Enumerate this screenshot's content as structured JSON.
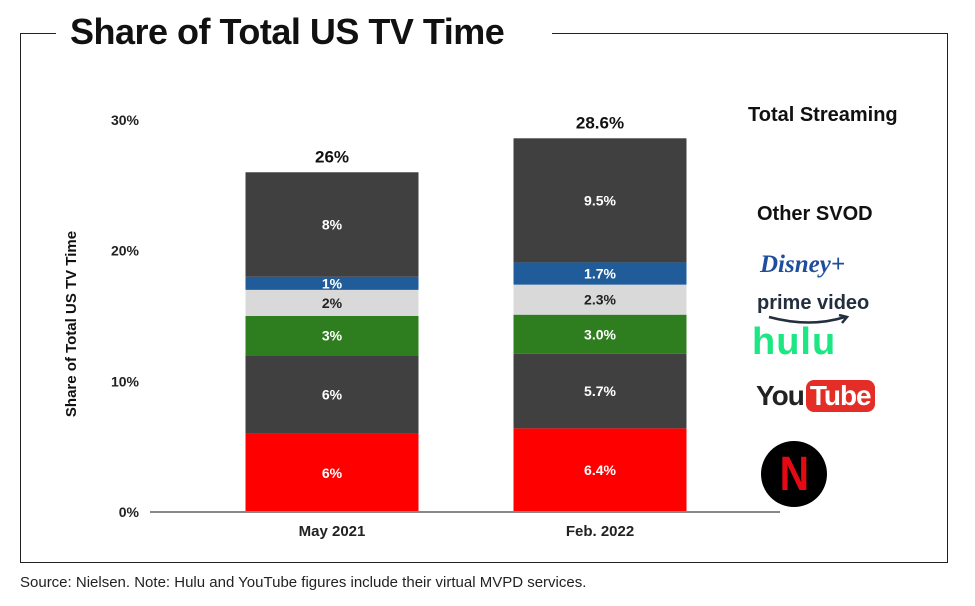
{
  "title": "Share of Total US TV Time",
  "source": "Source: Nielsen. Note: Hulu and YouTube figures include their virtual MVPD services.",
  "legend": {
    "total_streaming": "Total Streaming",
    "other_svod": "Other SVOD",
    "disney_logo": "Disney+",
    "prime_logo": "prime video",
    "hulu_logo": "hulu",
    "youtube_logo_you": "You",
    "youtube_logo_tube": "Tube",
    "netflix_logo": "N"
  },
  "colors": {
    "netflix": "#ff0000",
    "youtube": "#404040",
    "hulu": "#2e7d1e",
    "prime": "#d9d9d9",
    "disney": "#1f5c99",
    "other_svod": "#404040"
  },
  "chart_data": {
    "type": "bar",
    "stacked": true,
    "title": "Share of Total US TV Time",
    "ylabel": "Share of Total US TV Time",
    "xlabel": "",
    "ylim": [
      0,
      30
    ],
    "y_ticks": [
      "0%",
      "10%",
      "20%",
      "30%"
    ],
    "categories": [
      "May 2021",
      "Feb. 2022"
    ],
    "totals": [
      26,
      28.6
    ],
    "total_labels": [
      "26%",
      "28.6%"
    ],
    "series": [
      {
        "name": "Netflix",
        "values": [
          6,
          6.4
        ],
        "labels": [
          "6%",
          "6.4%"
        ],
        "color": "#ff0000",
        "label_color": "#ffffff"
      },
      {
        "name": "YouTube",
        "values": [
          6,
          5.7
        ],
        "labels": [
          "6%",
          "5.7%"
        ],
        "color": "#404040",
        "label_color": "#ffffff"
      },
      {
        "name": "Hulu",
        "values": [
          3,
          3.0
        ],
        "labels": [
          "3%",
          "3.0%"
        ],
        "color": "#2e7d1e",
        "label_color": "#ffffff"
      },
      {
        "name": "Prime Video",
        "values": [
          2,
          2.3
        ],
        "labels": [
          "2%",
          "2.3%"
        ],
        "color": "#d9d9d9",
        "label_color": "#222222"
      },
      {
        "name": "Disney+",
        "values": [
          1,
          1.7
        ],
        "labels": [
          "1%",
          "1.7%"
        ],
        "color": "#1f5c99",
        "label_color": "#ffffff"
      },
      {
        "name": "Other SVOD",
        "values": [
          8,
          9.5
        ],
        "labels": [
          "8%",
          "9.5%"
        ],
        "color": "#404040",
        "label_color": "#ffffff"
      }
    ],
    "grid": false,
    "legend_position": "right"
  }
}
